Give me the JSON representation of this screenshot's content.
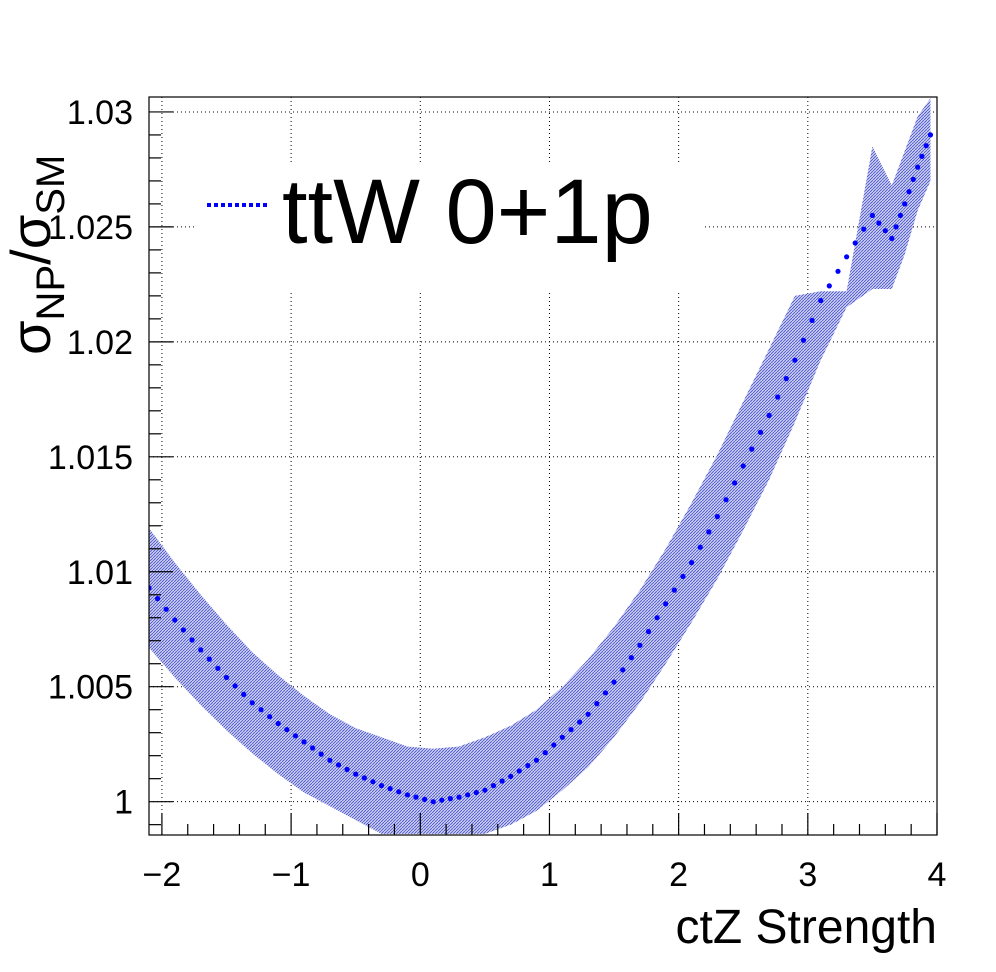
{
  "chart_data": {
    "type": "line",
    "title": "",
    "xlabel": "ctZ Strength",
    "ylabel": {
      "symbol": "σ",
      "num_sub": "NP",
      "slash": "/",
      "den_sub": "SM"
    },
    "xlim": [
      -2.1,
      4.0
    ],
    "ylim": [
      0.99855,
      1.03065
    ],
    "x_tick_values": [
      -2,
      -1,
      0,
      1,
      2,
      3,
      4
    ],
    "x_tick_labels": [
      "−2",
      "−1",
      "0",
      "1",
      "2",
      "3",
      "4"
    ],
    "y_tick_values": [
      1.0,
      1.005,
      1.01,
      1.015,
      1.02,
      1.025,
      1.03
    ],
    "y_tick_labels": [
      "1",
      "1.005",
      "1.01",
      "1.015",
      "1.02",
      "1.025",
      "1.03"
    ],
    "grid": true,
    "legend_position": "top-left",
    "legend": [
      {
        "label": "ttW 0+1p",
        "color": "#0000ff",
        "style": "dotted"
      }
    ],
    "series": [
      {
        "name": "ttW 0+1p",
        "color": "#0000ff",
        "band_color": "#3c46c8",
        "x": [
          -2.1,
          -1.9,
          -1.7,
          -1.5,
          -1.3,
          -1.1,
          -0.9,
          -0.7,
          -0.5,
          -0.3,
          -0.1,
          0.1,
          0.3,
          0.5,
          0.7,
          0.9,
          1.1,
          1.3,
          1.5,
          1.7,
          1.9,
          2.1,
          2.3,
          2.5,
          2.7,
          2.9,
          3.1,
          3.3,
          3.5,
          3.65,
          3.75,
          3.85,
          3.95
        ],
        "y": [
          1.0093,
          1.0079,
          1.0066,
          1.0054,
          1.0043,
          1.0034,
          1.0026,
          1.0018,
          1.0012,
          1.0007,
          1.0003,
          1.0,
          1.0002,
          1.0005,
          1.0011,
          1.0018,
          1.0028,
          1.0038,
          1.0052,
          1.0068,
          1.0086,
          1.0104,
          1.0124,
          1.0146,
          1.0168,
          1.0192,
          1.0218,
          1.0237,
          1.0255,
          1.0245,
          1.026,
          1.0276,
          1.029
        ],
        "band_low": [
          1.0067,
          1.0054,
          1.0042,
          1.0031,
          1.0021,
          1.0012,
          1.0004,
          0.9998,
          0.9992,
          0.9986,
          0.9986,
          0.9986,
          0.9986,
          0.9986,
          0.999,
          0.9996,
          1.0005,
          1.0015,
          1.0028,
          1.0043,
          1.006,
          1.0078,
          1.0097,
          1.0118,
          1.014,
          1.0165,
          1.0192,
          1.0215,
          1.0223,
          1.0223,
          1.0238,
          1.0257,
          1.027
        ],
        "band_high": [
          1.0119,
          1.0104,
          1.009,
          1.0077,
          1.0065,
          1.0055,
          1.0046,
          1.0038,
          1.0032,
          1.0028,
          1.0024,
          1.0023,
          1.0024,
          1.0028,
          1.0033,
          1.004,
          1.005,
          1.0062,
          1.0076,
          1.0092,
          1.011,
          1.013,
          1.0151,
          1.0174,
          1.0197,
          1.022,
          1.0222,
          1.0222,
          1.0285,
          1.0268,
          1.0283,
          1.0298,
          1.0306
        ]
      }
    ]
  }
}
